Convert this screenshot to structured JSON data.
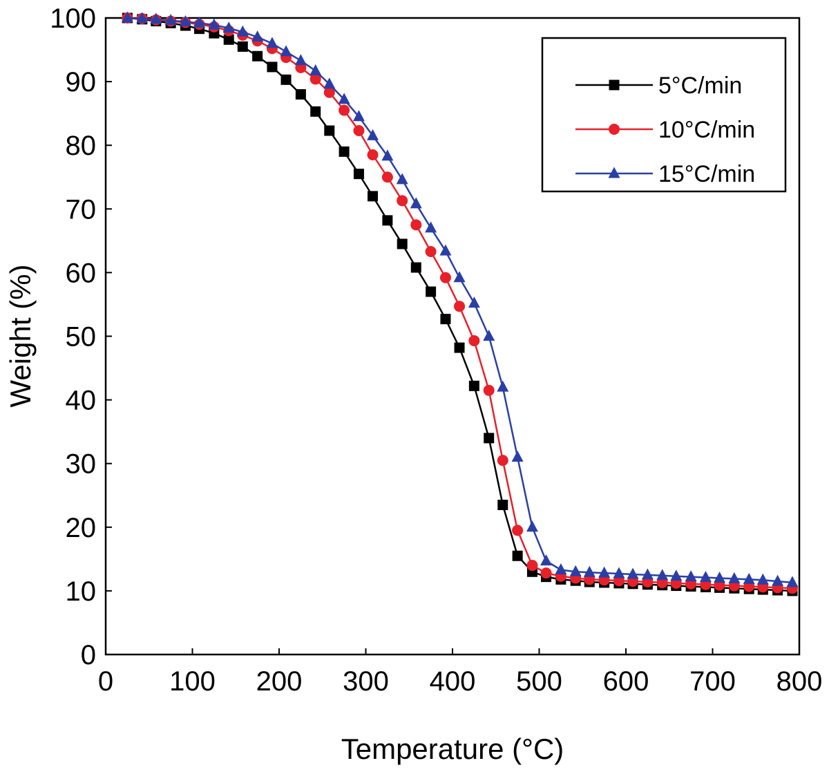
{
  "chart_data": {
    "type": "line",
    "xlabel": "Temperature (°C)",
    "ylabel": "Weight (%)",
    "x": [
      25,
      42,
      58,
      75,
      92,
      108,
      125,
      142,
      158,
      175,
      192,
      208,
      225,
      242,
      258,
      275,
      292,
      308,
      325,
      342,
      358,
      375,
      392,
      408,
      425,
      442,
      458,
      475,
      492,
      508,
      525,
      542,
      558,
      575,
      592,
      608,
      625,
      642,
      658,
      675,
      692,
      708,
      725,
      742,
      758,
      775,
      792
    ],
    "series": [
      {
        "name": "5°C/min",
        "color": "#000000",
        "marker": "square",
        "values": [
          100,
          99.8,
          99.5,
          99.2,
          98.8,
          98.3,
          97.6,
          96.6,
          95.5,
          94.0,
          92.3,
          90.3,
          88.0,
          85.3,
          82.3,
          79.0,
          75.5,
          72.0,
          68.2,
          64.5,
          60.8,
          57.0,
          52.7,
          48.2,
          42.2,
          34.0,
          23.5,
          15.5,
          13.0,
          12.2,
          11.8,
          11.6,
          11.4,
          11.3,
          11.2,
          11.1,
          11.0,
          10.9,
          10.8,
          10.7,
          10.6,
          10.5,
          10.4,
          10.3,
          10.2,
          10.1,
          10.0
        ]
      },
      {
        "name": "10°C/min",
        "color": "#e8202a",
        "marker": "circle",
        "values": [
          100,
          99.9,
          99.7,
          99.5,
          99.3,
          99.0,
          98.6,
          98.0,
          97.3,
          96.4,
          95.2,
          93.8,
          92.2,
          90.4,
          88.3,
          85.5,
          82.3,
          78.5,
          75.0,
          71.3,
          67.5,
          63.3,
          59.2,
          54.7,
          49.3,
          41.5,
          30.5,
          19.5,
          14.0,
          12.8,
          12.3,
          12.0,
          11.8,
          11.7,
          11.6,
          11.5,
          11.4,
          11.3,
          11.2,
          11.1,
          11.0,
          10.9,
          10.8,
          10.7,
          10.6,
          10.5,
          10.4
        ]
      },
      {
        "name": "15°C/min",
        "color": "#2a3fa6",
        "marker": "triangle",
        "values": [
          100,
          99.9,
          99.8,
          99.6,
          99.4,
          99.2,
          98.9,
          98.4,
          97.8,
          97.0,
          96.0,
          94.7,
          93.3,
          91.7,
          89.6,
          87.2,
          84.5,
          81.5,
          78.3,
          74.6,
          70.8,
          67.0,
          63.4,
          59.2,
          55.2,
          50.0,
          42.0,
          31.0,
          20.0,
          14.7,
          13.3,
          13.0,
          12.9,
          12.8,
          12.7,
          12.6,
          12.5,
          12.4,
          12.3,
          12.2,
          12.1,
          12.0,
          11.9,
          11.8,
          11.7,
          11.5,
          11.3
        ]
      }
    ],
    "xlim": [
      0,
      800
    ],
    "xticks": [
      0,
      100,
      200,
      300,
      400,
      500,
      600,
      700,
      800
    ],
    "ylim": [
      0,
      100
    ],
    "yticks": [
      0,
      10,
      20,
      30,
      40,
      50,
      60,
      70,
      80,
      90,
      100
    ],
    "legend": "upper right"
  }
}
